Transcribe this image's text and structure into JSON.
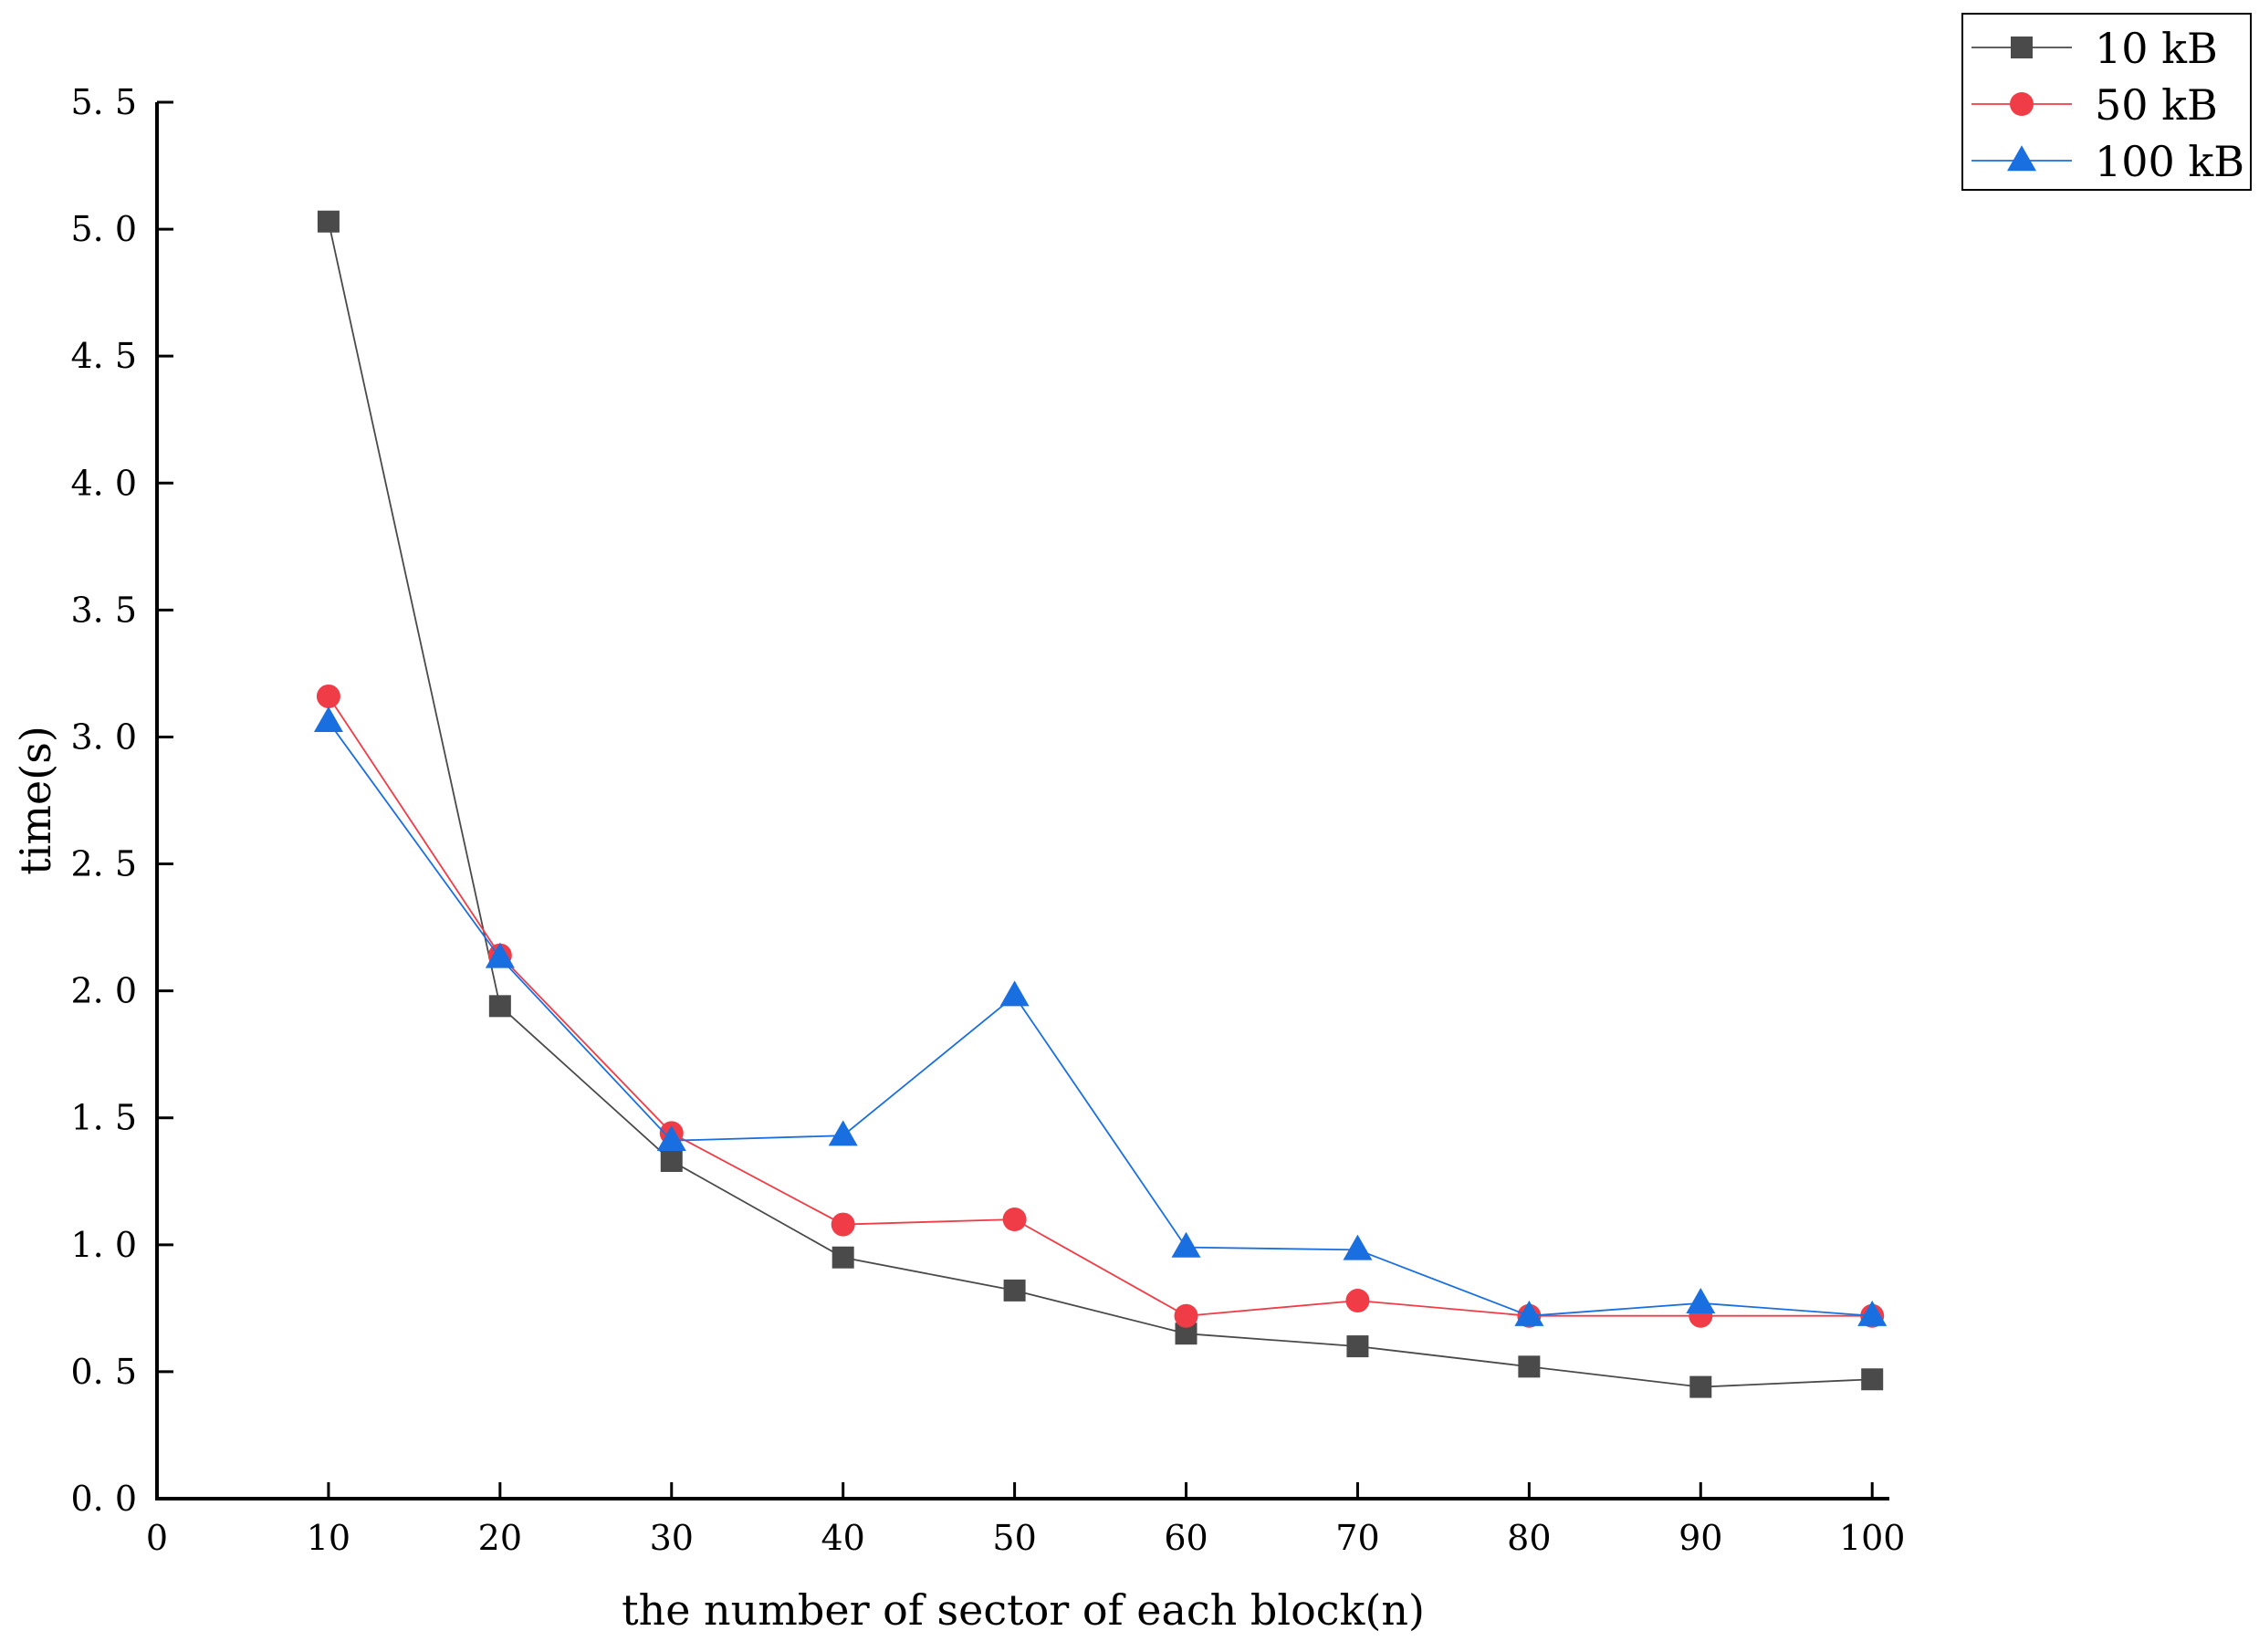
{
  "chart_data": {
    "type": "line",
    "title": "",
    "xlabel": "the number of sector of each block(n)",
    "ylabel": "time(s)",
    "xlim": [
      0,
      101
    ],
    "ylim": [
      0,
      5.5
    ],
    "xticks": [
      0,
      10,
      20,
      30,
      40,
      50,
      60,
      70,
      80,
      90,
      100
    ],
    "xtick_labels": [
      "0",
      "10",
      "20",
      "30",
      "40",
      "50",
      "60",
      "70",
      "80",
      "90",
      "100"
    ],
    "yticks": [
      0,
      0.5,
      1.0,
      1.5,
      2.0,
      2.5,
      3.0,
      3.5,
      4.0,
      4.5,
      5.0,
      5.5
    ],
    "ytick_labels": [
      "0. 0",
      "0. 5",
      "1. 0",
      "1. 5",
      "2. 0",
      "2. 5",
      "3. 0",
      "3. 5",
      "4. 0",
      "4. 5",
      "5. 0",
      "5. 5"
    ],
    "grid": false,
    "legend_position": "top-right",
    "x": [
      10,
      20,
      30,
      40,
      50,
      60,
      70,
      80,
      90,
      100
    ],
    "series": [
      {
        "name": "10  kB",
        "marker": "square",
        "color": "#4a4a4a",
        "values": [
          5.03,
          1.94,
          1.33,
          0.95,
          0.82,
          0.65,
          0.6,
          0.52,
          0.44,
          0.47
        ]
      },
      {
        "name": "50  kB",
        "marker": "circle",
        "color": "#f03c46",
        "values": [
          3.16,
          2.14,
          1.44,
          1.08,
          1.1,
          0.72,
          0.78,
          0.72,
          0.72,
          0.72
        ]
      },
      {
        "name": "100  kB",
        "marker": "triangle",
        "color": "#1a6fe0",
        "values": [
          3.06,
          2.13,
          1.41,
          1.43,
          1.98,
          0.99,
          0.98,
          0.72,
          0.77,
          0.72
        ]
      }
    ]
  }
}
